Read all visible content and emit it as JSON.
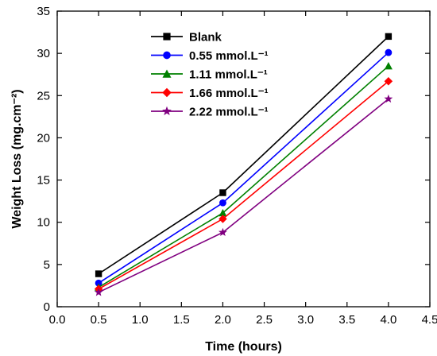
{
  "chart_data": {
    "type": "line",
    "title": "",
    "xlabel": "Time (hours)",
    "ylabel": "Weight Loss (mg.cm⁻²)",
    "xlim": [
      0.0,
      4.5
    ],
    "ylim": [
      0,
      35
    ],
    "x_ticks": [
      "0.0",
      "0.5",
      "1.0",
      "1.5",
      "2.0",
      "2.5",
      "3.0",
      "3.5",
      "4.0",
      "4.5"
    ],
    "y_ticks": [
      "0",
      "5",
      "10",
      "15",
      "20",
      "25",
      "30",
      "35"
    ],
    "grid": false,
    "legend_position": "top-left",
    "x": [
      0.5,
      2.0,
      4.0
    ],
    "series": [
      {
        "name": "Blank",
        "values": [
          3.9,
          13.5,
          32.0
        ],
        "color": "#000000",
        "marker": "square"
      },
      {
        "name": "0.55 mmol.L⁻¹",
        "values": [
          2.8,
          12.3,
          30.1
        ],
        "color": "#0000ff",
        "marker": "circle"
      },
      {
        "name": "1.11 mmol.L⁻¹",
        "values": [
          2.3,
          11.1,
          28.5
        ],
        "color": "#008000",
        "marker": "triangle-up"
      },
      {
        "name": "1.66 mmol.L⁻¹",
        "values": [
          2.1,
          10.4,
          26.7
        ],
        "color": "#ff0000",
        "marker": "diamond"
      },
      {
        "name": "2.22 mmol.L⁻¹",
        "values": [
          1.7,
          8.8,
          24.6
        ],
        "color": "#800080",
        "marker": "star"
      }
    ]
  }
}
